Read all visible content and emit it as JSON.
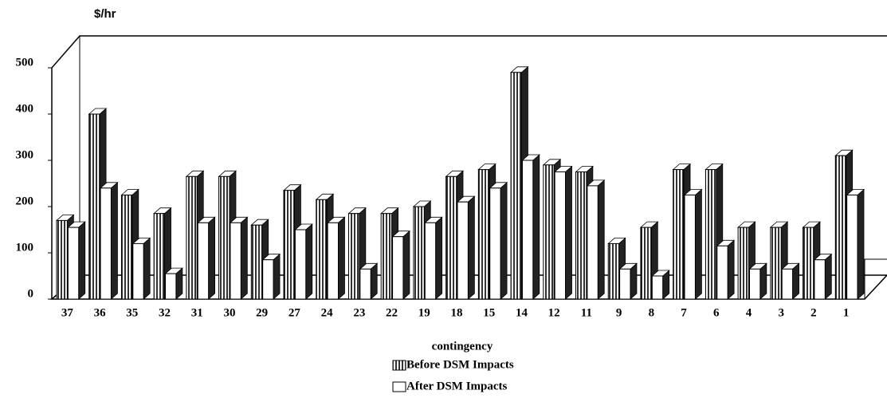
{
  "chart_data": {
    "type": "bar3d",
    "y_label": "$/hr",
    "x_label": "contingency",
    "categories": [
      "37",
      "36",
      "35",
      "32",
      "31",
      "30",
      "29",
      "27",
      "24",
      "23",
      "22",
      "19",
      "18",
      "15",
      "14",
      "12",
      "11",
      "9",
      "8",
      "7",
      "6",
      "4",
      "3",
      "2",
      "1"
    ],
    "series": [
      {
        "name": "Before DSM Impacts",
        "color": "#000000",
        "pattern": "vertical-stripes",
        "values": [
          170,
          400,
          225,
          185,
          265,
          265,
          160,
          235,
          215,
          185,
          185,
          200,
          265,
          280,
          490,
          290,
          275,
          120,
          155,
          280,
          280,
          155,
          155,
          155,
          310
        ]
      },
      {
        "name": "After DSM Impacts",
        "color": "#ffffff",
        "values": [
          155,
          240,
          120,
          55,
          165,
          165,
          85,
          150,
          165,
          65,
          135,
          165,
          210,
          240,
          300,
          275,
          245,
          65,
          50,
          225,
          115,
          65,
          65,
          85,
          225
        ]
      }
    ],
    "ylim": [
      0,
      500
    ],
    "yticks": [
      0,
      100,
      200,
      300,
      400,
      500
    ],
    "legend": "bottom"
  }
}
